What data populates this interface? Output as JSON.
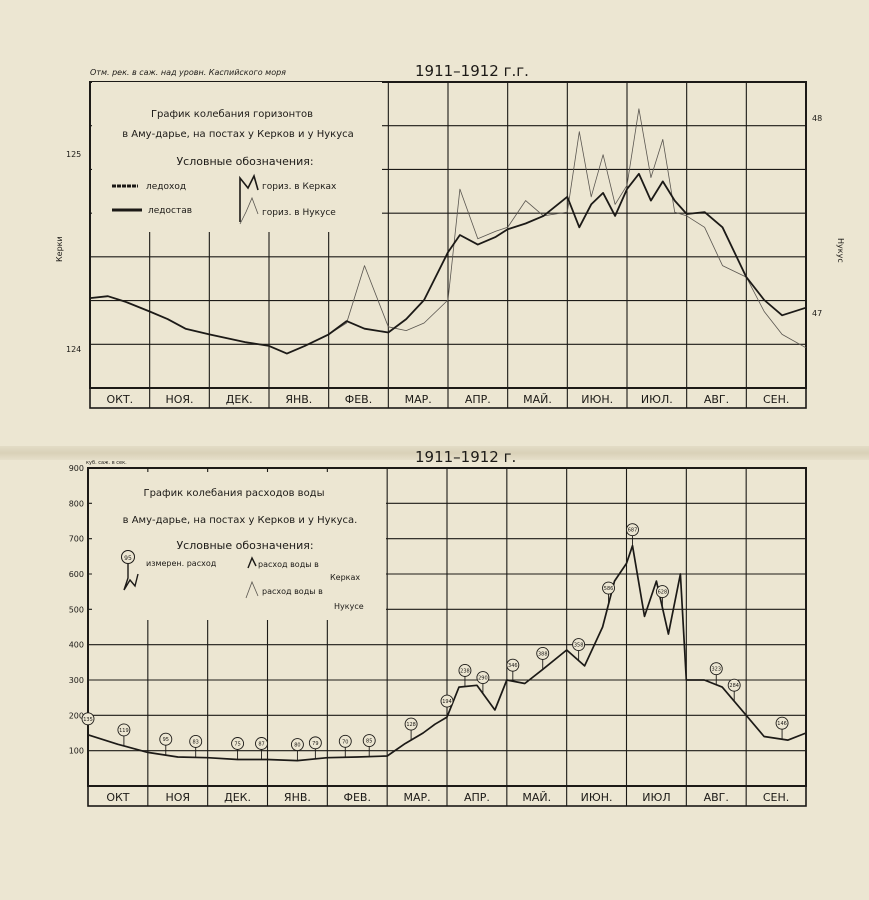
{
  "colors": {
    "paper": "#ece6d2",
    "ink": "#1c1a17",
    "line_light": "#5a5650"
  },
  "top": {
    "year_title": "1911–1912 г.г.",
    "corner_note": "Отм. рек. в саж. над уровн. Каспийского моря",
    "left_axis_label": "Керки",
    "right_axis_label": "Нукус",
    "legend_title_1": "График колебания горизонтов",
    "legend_title_2": "в Аму-дарье, на постах у Керков и у Нукуса",
    "legend_heading": "Условные обозначения:",
    "legend_ice_drift": "ледоход",
    "legend_freeze": "ледостав",
    "legend_kerki": "гориз. в Керках",
    "legend_nukus": "гориз. в Нукусе",
    "left_ticks": [
      "125",
      "124"
    ],
    "right_ticks": [
      "48",
      "47"
    ],
    "months": [
      "ОКТ.",
      "НОЯ.",
      "ДЕК.",
      "ЯНВ.",
      "ФЕВ.",
      "МАР.",
      "АПР.",
      "МАЙ.",
      "ИЮН.",
      "ИЮЛ.",
      "АВГ.",
      "СЕН."
    ]
  },
  "bottom": {
    "year_title": "1911–1912 г.",
    "corner_note": "куб. саж. в сек.",
    "legend_title_1": "График колебания расходов воды",
    "legend_title_2": "в Аму-дарье, на постах у Керков и у Нукуса.",
    "legend_heading": "Условные обозначения:",
    "legend_measured": "измерен. расход",
    "legend_kerki_1": "расход воды в",
    "legend_kerki_2": "Керках",
    "legend_nukus_1": "расход воды в",
    "legend_nukus_2": "Нукусе",
    "legend_example_label": "95",
    "y_ticks": [
      "900",
      "800",
      "700",
      "600",
      "500",
      "400",
      "300",
      "200",
      "100"
    ],
    "months": [
      "ОКТ",
      "НОЯ",
      "ДЕК.",
      "ЯНВ.",
      "ФЕВ.",
      "МАР.",
      "АПР.",
      "МАЙ.",
      "ИЮН.",
      "ИЮЛ",
      "АВГ.",
      "СЕН."
    ]
  },
  "chart_data": [
    {
      "type": "line",
      "title": "График колебания горизонтов в Аму-дарье, на постах у Керков и у Нукуса",
      "xlabel": "",
      "ylabel": "Керки / Нукус",
      "x": [
        0,
        0.3,
        0.6,
        1,
        1.3,
        1.6,
        2,
        2.3,
        2.6,
        3,
        3.3,
        3.6,
        4,
        4.3,
        4.6,
        5,
        5.3,
        5.6,
        6,
        6.2,
        6.5,
        6.8,
        7,
        7.3,
        7.6,
        8,
        8.2,
        8.4,
        8.6,
        8.8,
        9,
        9.2,
        9.4,
        9.6,
        9.8,
        10,
        10.3,
        10.6,
        11,
        11.3,
        11.6,
        12
      ],
      "series": [
        {
          "name": "гориз. в Керках",
          "values": [
            4.35,
            4.4,
            4.25,
            4.0,
            3.8,
            3.55,
            3.4,
            3.3,
            3.2,
            3.1,
            2.9,
            3.1,
            3.4,
            3.75,
            3.55,
            3.45,
            3.8,
            4.3,
            5.55,
            6.0,
            5.75,
            5.95,
            6.15,
            6.3,
            6.5,
            7.0,
            6.2,
            6.8,
            7.1,
            6.5,
            7.2,
            7.6,
            6.9,
            7.4,
            6.9,
            6.55,
            6.6,
            6.2,
            4.9,
            4.3,
            3.9,
            4.1
          ]
        },
        {
          "name": "гориз. в Нукусе",
          "values": [
            4.35,
            4.4,
            4.25,
            4.0,
            3.8,
            3.55,
            3.4,
            3.3,
            3.2,
            3.1,
            2.9,
            3.1,
            3.4,
            3.7,
            5.2,
            3.6,
            3.5,
            3.7,
            4.3,
            7.2,
            5.9,
            6.1,
            6.2,
            6.9,
            6.5,
            6.6,
            8.7,
            7.0,
            8.1,
            6.8,
            7.3,
            9.3,
            7.5,
            8.5,
            6.6,
            6.5,
            6.2,
            5.2,
            4.9,
            4.0,
            3.4,
            3.05
          ]
        }
      ],
      "ylim": [
        2.0,
        10.0
      ]
    },
    {
      "type": "line",
      "title": "График колебания расходов воды в Аму-дарье, на постах у Керков и у Нукуса.",
      "xlabel": "",
      "ylabel": "куб. саж. в сек.",
      "x": [
        0,
        0.5,
        1,
        1.5,
        2,
        2.5,
        3,
        3.5,
        4,
        4.5,
        5,
        5.3,
        5.6,
        5.8,
        6,
        6.2,
        6.5,
        6.8,
        7,
        7.3,
        7.6,
        8,
        8.3,
        8.6,
        8.8,
        9,
        9.1,
        9.3,
        9.5,
        9.7,
        9.9,
        10,
        10.3,
        10.6,
        11,
        11.3,
        11.7,
        12
      ],
      "series": [
        {
          "name": "расход воды в Керках",
          "values": [
            145,
            118,
            95,
            82,
            80,
            75,
            75,
            72,
            80,
            82,
            85,
            120,
            150,
            175,
            195,
            280,
            285,
            215,
            300,
            290,
            330,
            385,
            340,
            450,
            580,
            630,
            680,
            480,
            580,
            430,
            600,
            300,
            300,
            280,
            200,
            140,
            130,
            150
          ]
        }
      ],
      "measured_points": [
        {
          "x": 0,
          "label": "135"
        },
        {
          "x": 0.6,
          "label": "119"
        },
        {
          "x": 1.3,
          "label": "95"
        },
        {
          "x": 1.8,
          "label": "83"
        },
        {
          "x": 2.5,
          "label": "75"
        },
        {
          "x": 2.9,
          "label": "87"
        },
        {
          "x": 3.5,
          "label": "80"
        },
        {
          "x": 3.8,
          "label": "79"
        },
        {
          "x": 4.3,
          "label": "70"
        },
        {
          "x": 4.7,
          "label": "85"
        },
        {
          "x": 5.4,
          "label": "128"
        },
        {
          "x": 6.0,
          "label": "194"
        },
        {
          "x": 6.3,
          "label": "238"
        },
        {
          "x": 6.6,
          "label": "290"
        },
        {
          "x": 7.1,
          "label": "346"
        },
        {
          "x": 7.6,
          "label": "388"
        },
        {
          "x": 8.2,
          "label": "358"
        },
        {
          "x": 8.7,
          "label": "586"
        },
        {
          "x": 9.1,
          "label": "687"
        },
        {
          "x": 9.6,
          "label": "628"
        },
        {
          "x": 10.5,
          "label": "323"
        },
        {
          "x": 10.8,
          "label": "284"
        },
        {
          "x": 11.6,
          "label": "146"
        }
      ],
      "ylim": [
        0,
        900
      ]
    }
  ]
}
